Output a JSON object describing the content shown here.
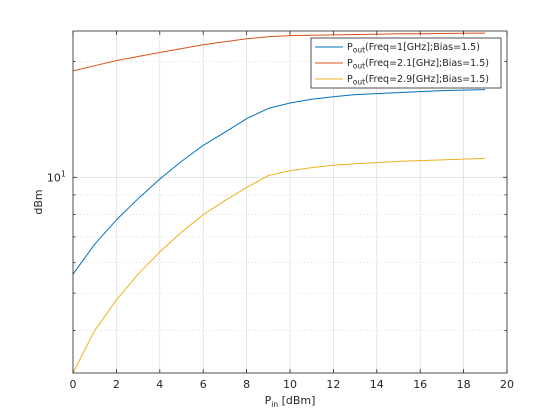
{
  "chart_data": {
    "type": "line",
    "xlabel": {
      "main": "P",
      "sub": "in",
      "rest": " [dBm]"
    },
    "ylabel": "dBm",
    "x_ticks": [
      0,
      2,
      4,
      6,
      8,
      10,
      12,
      14,
      16,
      18,
      20
    ],
    "xlim": [
      0,
      20
    ],
    "y_scale": "log",
    "ylim": [
      3.1,
      24
    ],
    "y_tick_labels": [
      {
        "value": 10,
        "base": "10",
        "exp": "1"
      }
    ],
    "grid": true,
    "legend_location": "top-right",
    "series": [
      {
        "name": "Freq=1[GHz];Bias=1.5",
        "legend": {
          "main": "P",
          "sub": "out",
          "rest": "(Freq=1[GHz];Bias=1.5)"
        },
        "color": "#0072bd",
        "x": [
          0,
          1,
          2,
          3,
          4,
          5,
          6,
          7,
          8,
          9,
          10,
          11,
          12,
          13,
          14,
          15,
          16,
          17,
          18,
          19
        ],
        "y": [
          5.6,
          6.7,
          7.75,
          8.8,
          9.9,
          11.0,
          12.1,
          13.1,
          14.2,
          15.1,
          15.6,
          15.95,
          16.2,
          16.4,
          16.5,
          16.6,
          16.7,
          16.8,
          16.85,
          16.9
        ]
      },
      {
        "name": "Freq=2.1[GHz];Bias=1.5",
        "legend": {
          "main": "P",
          "sub": "out",
          "rest": "(Freq=2.1[GHz];Bias=1.5)"
        },
        "color": "#d95319",
        "x": [
          0,
          1,
          2,
          3,
          4,
          5,
          6,
          7,
          8,
          9,
          10,
          11,
          12,
          13,
          14,
          15,
          16,
          17,
          18,
          19
        ],
        "y": [
          18.9,
          19.5,
          20.1,
          20.6,
          21.1,
          21.6,
          22.1,
          22.5,
          22.9,
          23.2,
          23.35,
          23.4,
          23.45,
          23.5,
          23.55,
          23.6,
          23.62,
          23.65,
          23.68,
          23.7
        ]
      },
      {
        "name": "Freq=2.9[GHz];Bias=1.5",
        "legend": {
          "main": "P",
          "sub": "out",
          "rest": "(Freq=2.9[GHz];Bias=1.5)"
        },
        "color": "#edb120",
        "x": [
          0,
          1,
          2,
          3,
          4,
          5,
          6,
          7,
          8,
          9,
          10,
          11,
          12,
          13,
          14,
          15,
          16,
          17,
          18,
          19
        ],
        "y": [
          3.1,
          4.0,
          4.8,
          5.6,
          6.4,
          7.2,
          8.0,
          8.7,
          9.4,
          10.1,
          10.4,
          10.6,
          10.75,
          10.85,
          10.92,
          11.0,
          11.05,
          11.1,
          11.15,
          11.2
        ]
      }
    ]
  }
}
